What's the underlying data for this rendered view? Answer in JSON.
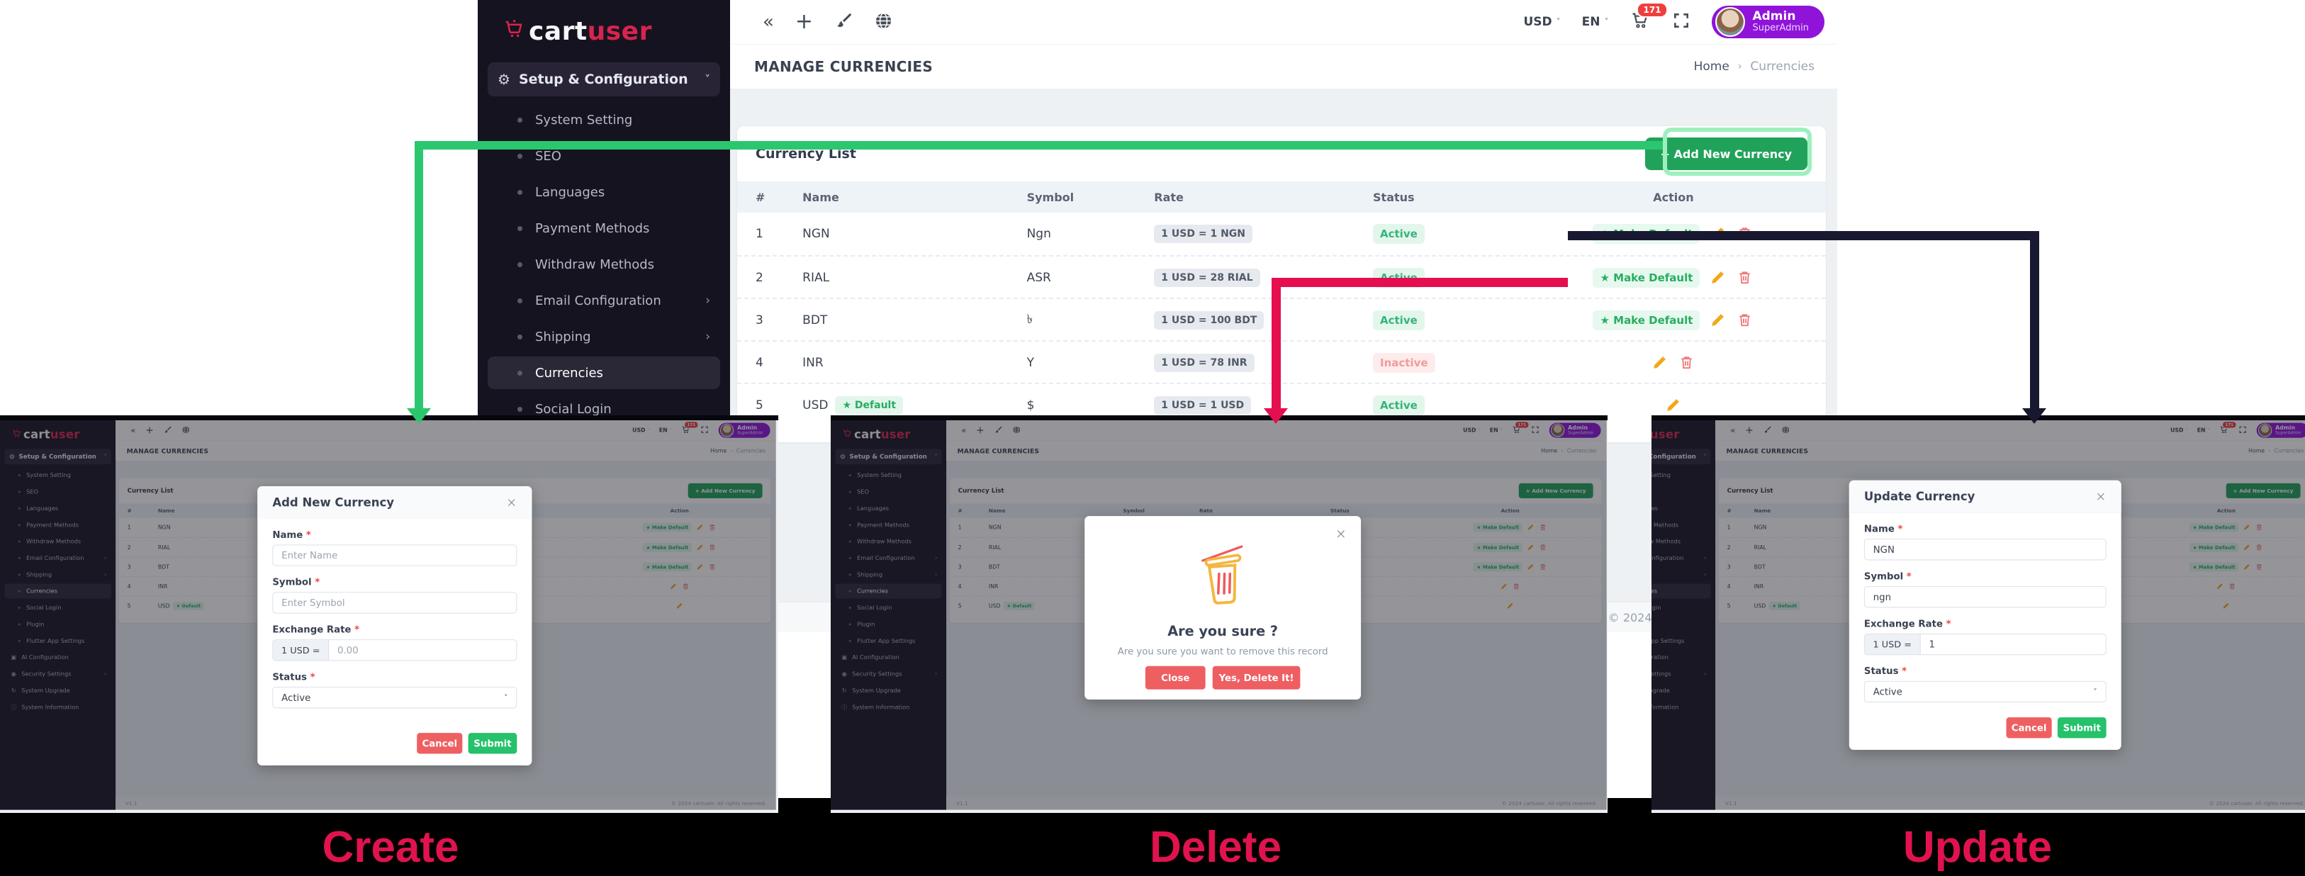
{
  "brand": {
    "part1": "cart",
    "part2": "user"
  },
  "sidebar": {
    "header": "Setup & Configuration",
    "items": [
      {
        "label": "System Setting"
      },
      {
        "label": "SEO"
      },
      {
        "label": "Languages"
      },
      {
        "label": "Payment Methods"
      },
      {
        "label": "Withdraw Methods"
      },
      {
        "label": "Email Configuration",
        "chevron": true
      },
      {
        "label": "Shipping",
        "chevron": true
      },
      {
        "label": "Currencies",
        "active": true
      },
      {
        "label": "Social Login"
      },
      {
        "label": "Plugin"
      },
      {
        "label": "Flutter App Settings"
      },
      {
        "label": "AI Configuration",
        "icon": "ai"
      },
      {
        "label": "Security Settings",
        "icon": "shield",
        "chevron": true
      },
      {
        "label": "System Upgrade",
        "icon": "upgrade"
      },
      {
        "label": "System Information",
        "icon": "info"
      }
    ]
  },
  "topbar": {
    "currency": "USD",
    "language": "EN",
    "cart_count": "171",
    "admin_name": "Admin",
    "admin_role": "SuperAdmin"
  },
  "header": {
    "title": "MANAGE CURRENCIES",
    "breadcrumb_home": "Home",
    "breadcrumb_current": "Currencies"
  },
  "card": {
    "title": "Currency List",
    "add_button": "+  Add New Currency"
  },
  "table": {
    "headers": [
      "#",
      "Name",
      "Symbol",
      "Rate",
      "Status",
      "Action"
    ],
    "make_default_label": "★ Make Default",
    "default_badge": "★ Default",
    "rows": [
      {
        "num": "1",
        "name": "NGN",
        "is_default": false,
        "symbol": "Ngn",
        "rate": "1 USD = 1 NGN",
        "status": "Active",
        "make_default": true,
        "edit": true,
        "delete": true
      },
      {
        "num": "2",
        "name": "RIAL",
        "is_default": false,
        "symbol": "ASR",
        "rate": "1 USD = 28 RIAL",
        "status": "Active",
        "make_default": true,
        "edit": true,
        "delete": true
      },
      {
        "num": "3",
        "name": "BDT",
        "is_default": false,
        "symbol": "৳",
        "rate": "1 USD = 100 BDT",
        "status": "Active",
        "make_default": true,
        "edit": true,
        "delete": true
      },
      {
        "num": "4",
        "name": "INR",
        "is_default": false,
        "symbol": "Y",
        "rate": "1 USD = 78 INR",
        "status": "Inactive",
        "make_default": false,
        "edit": true,
        "delete": true
      },
      {
        "num": "5",
        "name": "USD",
        "is_default": true,
        "symbol": "$",
        "rate": "1 USD = 1 USD",
        "status": "Active",
        "make_default": false,
        "edit": true,
        "delete": false
      }
    ]
  },
  "footer": {
    "version": "V1.1",
    "copyright": "© 2024 cartuser. All rights reserved."
  },
  "modals": {
    "create": {
      "title": "Add New Currency",
      "name_label": "Name",
      "name_placeholder": "Enter Name",
      "symbol_label": "Symbol",
      "symbol_placeholder": "Enter Symbol",
      "rate_label": "Exchange Rate",
      "rate_prefix": "1 USD =",
      "rate_placeholder": "0.00",
      "status_label": "Status",
      "status_value": "Active",
      "cancel": "Cancel",
      "submit": "Submit"
    },
    "delete": {
      "title": "Are you sure ?",
      "message": "Are you sure you want to remove this record",
      "close": "Close",
      "confirm": "Yes, Delete It!"
    },
    "update": {
      "title": "Update Currency",
      "name_label": "Name",
      "name_value": "NGN",
      "symbol_label": "Symbol",
      "symbol_value": "ngn",
      "rate_label": "Exchange Rate",
      "rate_prefix": "1 USD =",
      "rate_value": "1",
      "status_label": "Status",
      "status_value": "Active",
      "cancel": "Cancel",
      "submit": "Submit"
    }
  },
  "annotations": {
    "create_label": "Create",
    "delete_label": "Delete",
    "update_label": "Update",
    "label_color": "#e0134e",
    "green_arrow": "#2bc76f",
    "crimson_arrow": "#e50e4e",
    "navy_arrow": "#181830"
  }
}
